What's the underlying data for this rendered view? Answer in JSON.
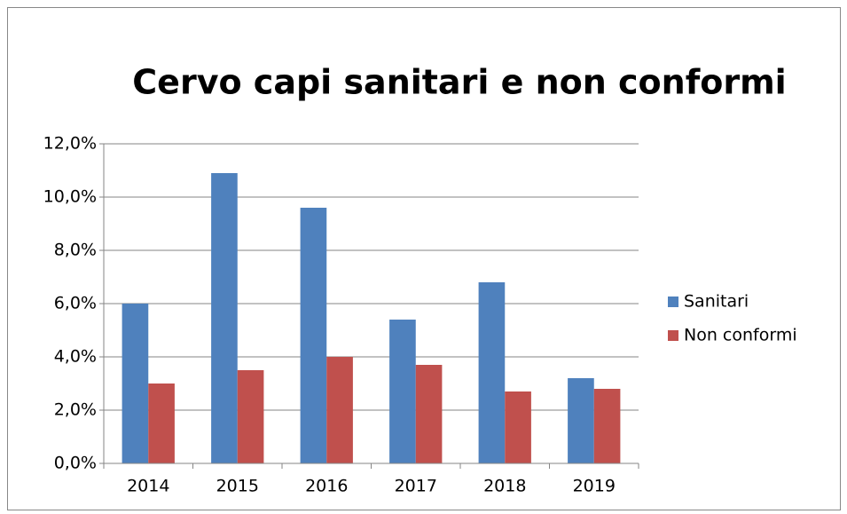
{
  "chart_data": {
    "type": "bar",
    "title": "Cervo capi sanitari e non conformi",
    "categories": [
      "2014",
      "2015",
      "2016",
      "2017",
      "2018",
      "2019"
    ],
    "series": [
      {
        "name": "Sanitari",
        "color": "#4f81bd",
        "values": [
          6.0,
          10.9,
          9.6,
          5.4,
          6.8,
          3.2
        ]
      },
      {
        "name": "Non conformi",
        "color": "#c0504d",
        "values": [
          3.0,
          3.5,
          4.0,
          3.7,
          2.7,
          2.8
        ]
      }
    ],
    "ylim": [
      0,
      12
    ],
    "yticks": [
      {
        "value": 0,
        "label": "0,0%"
      },
      {
        "value": 2,
        "label": "2,0%"
      },
      {
        "value": 4,
        "label": "4,0%"
      },
      {
        "value": 6,
        "label": "6,0%"
      },
      {
        "value": 8,
        "label": "8,0%"
      },
      {
        "value": 10,
        "label": "10,0%"
      },
      {
        "value": 12,
        "label": "12,0%"
      }
    ],
    "grid": true,
    "legend": "right"
  }
}
